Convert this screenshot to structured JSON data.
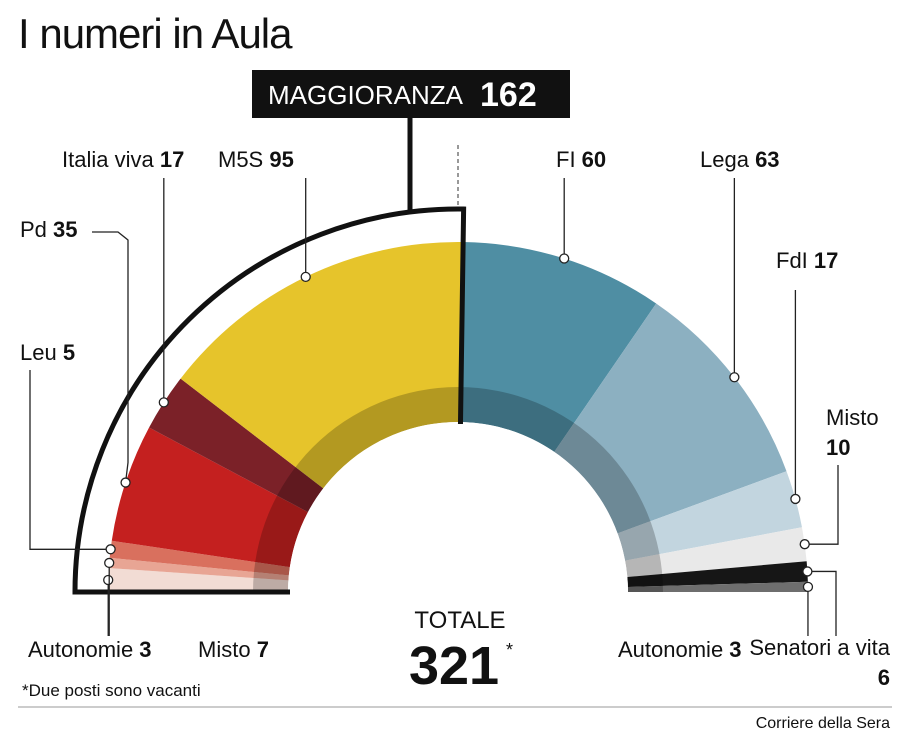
{
  "chart_data": {
    "type": "parliament",
    "title": "I numeri in Aula",
    "majority": {
      "label": "MAGGIORANZA",
      "value": 162
    },
    "total": {
      "label": "TOTALE",
      "value": 321,
      "mark": "*"
    },
    "footnote": "*Due posti sono vacanti",
    "source": "Corriere della Sera",
    "categories": [
      "Misto",
      "Autonomie",
      "Leu",
      "Pd",
      "Italia viva",
      "M5S",
      "FI",
      "Lega",
      "FdI",
      "Misto",
      "Senatori a vita",
      "Autonomie"
    ],
    "values": [
      7,
      3,
      5,
      35,
      17,
      95,
      60,
      63,
      17,
      10,
      6,
      3
    ],
    "colors": [
      "#f2dcd4",
      "#e8a594",
      "#d9705e",
      "#c4201f",
      "#7b2128",
      "#e6c42b",
      "#4f8ea3",
      "#8cb0c1",
      "#c2d5df",
      "#e9e9e9",
      "#161616",
      "#6e6e6e"
    ]
  }
}
